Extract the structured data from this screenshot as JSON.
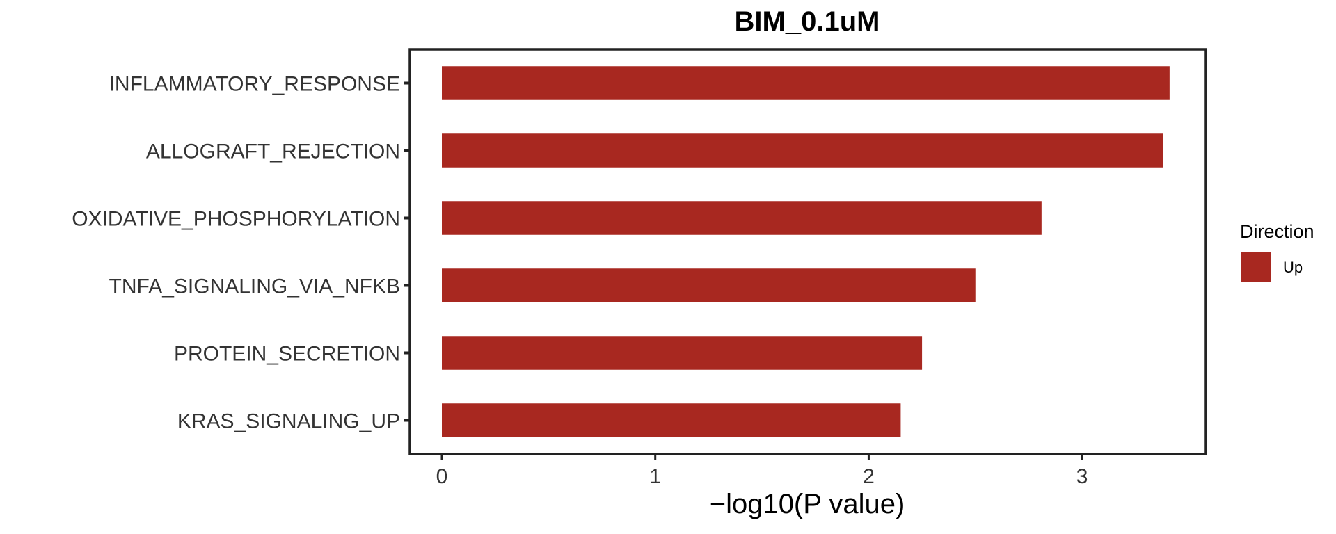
{
  "chart_data": {
    "type": "bar",
    "orientation": "horizontal",
    "title": "BIM_0.1uM",
    "categories": [
      "INFLAMMATORY_RESPONSE",
      "ALLOGRAFT_REJECTION",
      "OXIDATIVE_PHOSPHORYLATION",
      "TNFA_SIGNALING_VIA_NFKB",
      "PROTEIN_SECRETION",
      "KRAS_SIGNALING_UP"
    ],
    "series": [
      {
        "name": "Up",
        "color": "#A82820",
        "values": [
          3.41,
          3.38,
          2.81,
          2.5,
          2.25,
          2.15
        ]
      }
    ],
    "xlabel": "−log10(P value)",
    "xlim": [
      -0.15,
      3.58
    ],
    "xticks": [
      0,
      1,
      2,
      3
    ],
    "grid": false,
    "legend": {
      "title": "Direction",
      "position": "right",
      "entries": [
        "Up"
      ]
    }
  }
}
